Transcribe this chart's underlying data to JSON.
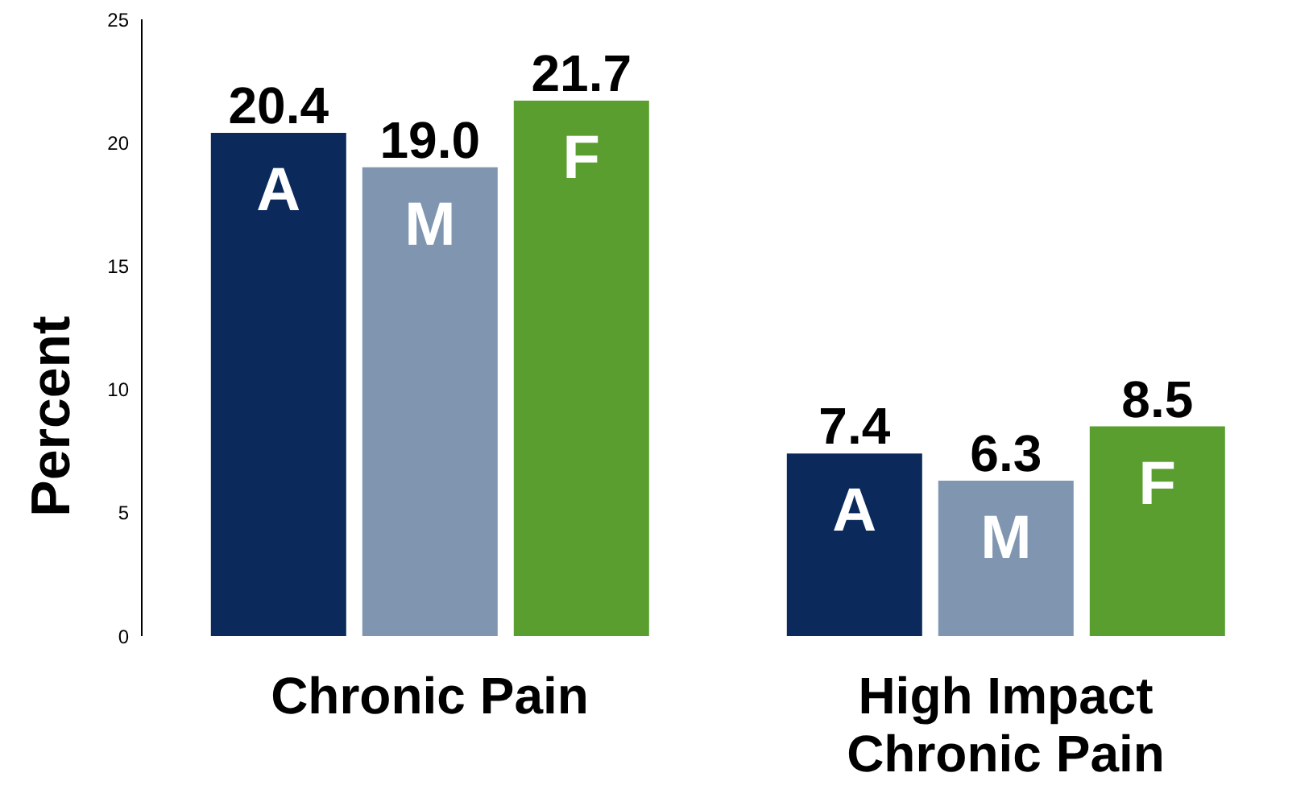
{
  "chart_data": {
    "type": "bar",
    "ylabel": "Percent",
    "categories": [
      "Chronic Pain",
      "High Impact Chronic Pain"
    ],
    "series": [
      {
        "name": "A",
        "color": "#0b2a5b",
        "values": [
          20.4,
          7.4
        ],
        "value_labels": [
          "20.4",
          "7.4"
        ]
      },
      {
        "name": "M",
        "color": "#7f95b0",
        "values": [
          19.0,
          6.3
        ],
        "value_labels": [
          "19.0",
          "6.3"
        ]
      },
      {
        "name": "F",
        "color": "#5a9e2f",
        "values": [
          21.7,
          8.5
        ],
        "value_labels": [
          "21.7",
          "8.5"
        ]
      }
    ],
    "ylim": [
      0,
      25
    ],
    "yticks": [
      0,
      5,
      10,
      15,
      20,
      25
    ],
    "grid": false,
    "legend": false
  }
}
